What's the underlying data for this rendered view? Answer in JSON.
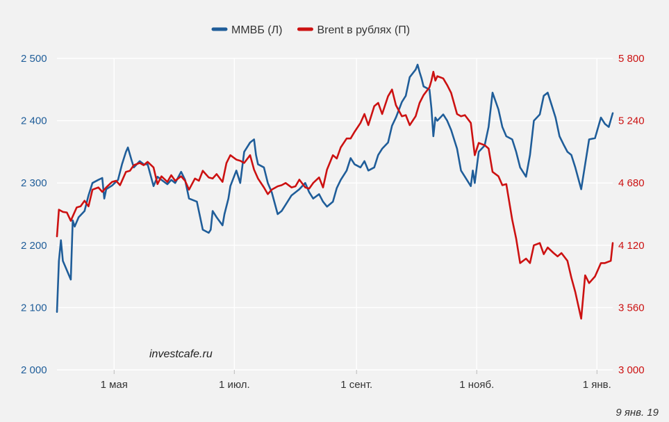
{
  "chart_data": {
    "type": "line",
    "title": "",
    "legend_position": "top-center",
    "grid": true,
    "x_ticks": [
      "1 мая",
      "1 июл.",
      "1 сент.",
      "1 нояб.",
      "1 янв."
    ],
    "y_left": {
      "ticks": [
        "2 000",
        "2 100",
        "2 200",
        "2 300",
        "2 400",
        "2 500"
      ],
      "range": [
        2000,
        2500
      ]
    },
    "y_right": {
      "ticks": [
        "3 000",
        "3 560",
        "4 120",
        "4 680",
        "5 240",
        "5 800"
      ],
      "range": [
        3000,
        5800
      ]
    },
    "x_range": [
      "2018-04-02",
      "2019-01-09"
    ],
    "series": [
      {
        "name": "ММВБ (Л)",
        "color": "#1f5d99",
        "axis": "left",
        "points": [
          [
            "2018-04-02",
            2093
          ],
          [
            "2018-04-03",
            2175
          ],
          [
            "2018-04-04",
            2208
          ],
          [
            "2018-04-05",
            2175
          ],
          [
            "2018-04-09",
            2145
          ],
          [
            "2018-04-10",
            2240
          ],
          [
            "2018-04-11",
            2230
          ],
          [
            "2018-04-13",
            2245
          ],
          [
            "2018-04-16",
            2255
          ],
          [
            "2018-04-18",
            2280
          ],
          [
            "2018-04-20",
            2300
          ],
          [
            "2018-04-23",
            2305
          ],
          [
            "2018-04-25",
            2308
          ],
          [
            "2018-04-26",
            2275
          ],
          [
            "2018-04-27",
            2290
          ],
          [
            "2018-04-30",
            2296
          ],
          [
            "2018-05-03",
            2305
          ],
          [
            "2018-05-05",
            2330
          ],
          [
            "2018-05-07",
            2350
          ],
          [
            "2018-05-08",
            2357
          ],
          [
            "2018-05-10",
            2335
          ],
          [
            "2018-05-11",
            2325
          ],
          [
            "2018-05-14",
            2335
          ],
          [
            "2018-05-16",
            2330
          ],
          [
            "2018-05-18",
            2330
          ],
          [
            "2018-05-21",
            2295
          ],
          [
            "2018-05-23",
            2310
          ],
          [
            "2018-05-25",
            2305
          ],
          [
            "2018-05-28",
            2298
          ],
          [
            "2018-05-30",
            2305
          ],
          [
            "2018-06-01",
            2300
          ],
          [
            "2018-06-04",
            2318
          ],
          [
            "2018-06-06",
            2305
          ],
          [
            "2018-06-08",
            2275
          ],
          [
            "2018-06-12",
            2270
          ],
          [
            "2018-06-15",
            2225
          ],
          [
            "2018-06-18",
            2220
          ],
          [
            "2018-06-19",
            2225
          ],
          [
            "2018-06-20",
            2255
          ],
          [
            "2018-06-22",
            2245
          ],
          [
            "2018-06-25",
            2232
          ],
          [
            "2018-06-26",
            2250
          ],
          [
            "2018-06-28",
            2275
          ],
          [
            "2018-06-29",
            2295
          ],
          [
            "2018-07-02",
            2320
          ],
          [
            "2018-07-04",
            2300
          ],
          [
            "2018-07-06",
            2350
          ],
          [
            "2018-07-09",
            2365
          ],
          [
            "2018-07-11",
            2370
          ],
          [
            "2018-07-12",
            2345
          ],
          [
            "2018-07-13",
            2330
          ],
          [
            "2018-07-16",
            2325
          ],
          [
            "2018-07-18",
            2300
          ],
          [
            "2018-07-20",
            2285
          ],
          [
            "2018-07-23",
            2250
          ],
          [
            "2018-07-25",
            2255
          ],
          [
            "2018-07-27",
            2265
          ],
          [
            "2018-07-30",
            2280
          ],
          [
            "2018-08-01",
            2285
          ],
          [
            "2018-08-03",
            2290
          ],
          [
            "2018-08-06",
            2300
          ],
          [
            "2018-08-08",
            2285
          ],
          [
            "2018-08-10",
            2275
          ],
          [
            "2018-08-13",
            2282
          ],
          [
            "2018-08-15",
            2270
          ],
          [
            "2018-08-17",
            2262
          ],
          [
            "2018-08-20",
            2270
          ],
          [
            "2018-08-22",
            2292
          ],
          [
            "2018-08-24",
            2305
          ],
          [
            "2018-08-27",
            2320
          ],
          [
            "2018-08-29",
            2340
          ],
          [
            "2018-08-31",
            2330
          ],
          [
            "2018-09-03",
            2325
          ],
          [
            "2018-09-05",
            2335
          ],
          [
            "2018-09-07",
            2320
          ],
          [
            "2018-09-10",
            2325
          ],
          [
            "2018-09-12",
            2345
          ],
          [
            "2018-09-14",
            2355
          ],
          [
            "2018-09-17",
            2365
          ],
          [
            "2018-09-19",
            2392
          ],
          [
            "2018-09-21",
            2405
          ],
          [
            "2018-09-24",
            2430
          ],
          [
            "2018-09-26",
            2440
          ],
          [
            "2018-09-28",
            2470
          ],
          [
            "2018-10-01",
            2482
          ],
          [
            "2018-10-02",
            2490
          ],
          [
            "2018-10-03",
            2478
          ],
          [
            "2018-10-04",
            2468
          ],
          [
            "2018-10-05",
            2455
          ],
          [
            "2018-10-08",
            2450
          ],
          [
            "2018-10-09",
            2420
          ],
          [
            "2018-10-10",
            2375
          ],
          [
            "2018-10-11",
            2405
          ],
          [
            "2018-10-12",
            2400
          ],
          [
            "2018-10-15",
            2410
          ],
          [
            "2018-10-17",
            2400
          ],
          [
            "2018-10-19",
            2385
          ],
          [
            "2018-10-22",
            2355
          ],
          [
            "2018-10-24",
            2320
          ],
          [
            "2018-10-26",
            2310
          ],
          [
            "2018-10-29",
            2295
          ],
          [
            "2018-10-30",
            2320
          ],
          [
            "2018-10-31",
            2300
          ],
          [
            "2018-11-02",
            2350
          ],
          [
            "2018-11-05",
            2360
          ],
          [
            "2018-11-07",
            2390
          ],
          [
            "2018-11-09",
            2445
          ],
          [
            "2018-11-12",
            2418
          ],
          [
            "2018-11-14",
            2390
          ],
          [
            "2018-11-16",
            2375
          ],
          [
            "2018-11-19",
            2370
          ],
          [
            "2018-11-21",
            2350
          ],
          [
            "2018-11-23",
            2325
          ],
          [
            "2018-11-26",
            2310
          ],
          [
            "2018-11-28",
            2345
          ],
          [
            "2018-11-30",
            2400
          ],
          [
            "2018-12-03",
            2410
          ],
          [
            "2018-12-05",
            2440
          ],
          [
            "2018-12-07",
            2445
          ],
          [
            "2018-12-09",
            2425
          ],
          [
            "2018-12-11",
            2405
          ],
          [
            "2018-12-13",
            2375
          ],
          [
            "2018-12-15",
            2362
          ],
          [
            "2018-12-17",
            2350
          ],
          [
            "2018-12-19",
            2345
          ],
          [
            "2018-12-21",
            2325
          ],
          [
            "2018-12-24",
            2290
          ],
          [
            "2018-12-26",
            2330
          ],
          [
            "2018-12-28",
            2370
          ],
          [
            "2018-12-31",
            2372
          ],
          [
            "2019-01-03",
            2405
          ],
          [
            "2019-01-05",
            2395
          ],
          [
            "2019-01-07",
            2390
          ],
          [
            "2019-01-09",
            2412
          ]
        ]
      },
      {
        "name": "Brent в рублях (П)",
        "color": "#cc1111",
        "axis": "right",
        "points": [
          [
            "2018-04-02",
            4200
          ],
          [
            "2018-04-03",
            4440
          ],
          [
            "2018-04-05",
            4420
          ],
          [
            "2018-04-07",
            4415
          ],
          [
            "2018-04-09",
            4340
          ],
          [
            "2018-04-10",
            4380
          ],
          [
            "2018-04-12",
            4460
          ],
          [
            "2018-04-14",
            4470
          ],
          [
            "2018-04-16",
            4520
          ],
          [
            "2018-04-18",
            4470
          ],
          [
            "2018-04-20",
            4620
          ],
          [
            "2018-04-23",
            4640
          ],
          [
            "2018-04-25",
            4600
          ],
          [
            "2018-04-27",
            4640
          ],
          [
            "2018-04-30",
            4690
          ],
          [
            "2018-05-02",
            4700
          ],
          [
            "2018-05-04",
            4660
          ],
          [
            "2018-05-07",
            4780
          ],
          [
            "2018-05-09",
            4790
          ],
          [
            "2018-05-11",
            4840
          ],
          [
            "2018-05-14",
            4860
          ],
          [
            "2018-05-16",
            4840
          ],
          [
            "2018-05-18",
            4870
          ],
          [
            "2018-05-21",
            4820
          ],
          [
            "2018-05-23",
            4670
          ],
          [
            "2018-05-25",
            4740
          ],
          [
            "2018-05-28",
            4690
          ],
          [
            "2018-05-30",
            4750
          ],
          [
            "2018-06-01",
            4700
          ],
          [
            "2018-06-04",
            4740
          ],
          [
            "2018-06-06",
            4700
          ],
          [
            "2018-06-08",
            4620
          ],
          [
            "2018-06-11",
            4720
          ],
          [
            "2018-06-13",
            4700
          ],
          [
            "2018-06-15",
            4790
          ],
          [
            "2018-06-18",
            4730
          ],
          [
            "2018-06-20",
            4720
          ],
          [
            "2018-06-22",
            4760
          ],
          [
            "2018-06-25",
            4690
          ],
          [
            "2018-06-27",
            4860
          ],
          [
            "2018-06-29",
            4930
          ],
          [
            "2018-07-02",
            4890
          ],
          [
            "2018-07-04",
            4880
          ],
          [
            "2018-07-06",
            4860
          ],
          [
            "2018-07-09",
            4930
          ],
          [
            "2018-07-11",
            4800
          ],
          [
            "2018-07-13",
            4720
          ],
          [
            "2018-07-16",
            4640
          ],
          [
            "2018-07-18",
            4580
          ],
          [
            "2018-07-20",
            4620
          ],
          [
            "2018-07-23",
            4650
          ],
          [
            "2018-07-25",
            4660
          ],
          [
            "2018-07-27",
            4680
          ],
          [
            "2018-07-30",
            4640
          ],
          [
            "2018-08-01",
            4650
          ],
          [
            "2018-08-03",
            4710
          ],
          [
            "2018-08-06",
            4640
          ],
          [
            "2018-08-08",
            4630
          ],
          [
            "2018-08-10",
            4680
          ],
          [
            "2018-08-13",
            4730
          ],
          [
            "2018-08-15",
            4640
          ],
          [
            "2018-08-17",
            4800
          ],
          [
            "2018-08-20",
            4930
          ],
          [
            "2018-08-22",
            4900
          ],
          [
            "2018-08-24",
            5000
          ],
          [
            "2018-08-27",
            5080
          ],
          [
            "2018-08-29",
            5080
          ],
          [
            "2018-08-31",
            5140
          ],
          [
            "2018-09-03",
            5220
          ],
          [
            "2018-09-05",
            5300
          ],
          [
            "2018-09-07",
            5200
          ],
          [
            "2018-09-10",
            5370
          ],
          [
            "2018-09-12",
            5400
          ],
          [
            "2018-09-14",
            5300
          ],
          [
            "2018-09-17",
            5460
          ],
          [
            "2018-09-19",
            5520
          ],
          [
            "2018-09-21",
            5380
          ],
          [
            "2018-09-24",
            5280
          ],
          [
            "2018-09-26",
            5290
          ],
          [
            "2018-09-28",
            5200
          ],
          [
            "2018-10-01",
            5280
          ],
          [
            "2018-10-03",
            5400
          ],
          [
            "2018-10-05",
            5470
          ],
          [
            "2018-10-08",
            5540
          ],
          [
            "2018-10-09",
            5600
          ],
          [
            "2018-10-10",
            5680
          ],
          [
            "2018-10-11",
            5600
          ],
          [
            "2018-10-12",
            5640
          ],
          [
            "2018-10-15",
            5620
          ],
          [
            "2018-10-17",
            5560
          ],
          [
            "2018-10-19",
            5490
          ],
          [
            "2018-10-22",
            5300
          ],
          [
            "2018-10-24",
            5280
          ],
          [
            "2018-10-26",
            5290
          ],
          [
            "2018-10-29",
            5220
          ],
          [
            "2018-10-31",
            4930
          ],
          [
            "2018-11-02",
            5040
          ],
          [
            "2018-11-05",
            5020
          ],
          [
            "2018-11-07",
            4990
          ],
          [
            "2018-11-09",
            4780
          ],
          [
            "2018-11-12",
            4740
          ],
          [
            "2018-11-14",
            4660
          ],
          [
            "2018-11-16",
            4670
          ],
          [
            "2018-11-19",
            4350
          ],
          [
            "2018-11-21",
            4180
          ],
          [
            "2018-11-23",
            3960
          ],
          [
            "2018-11-26",
            4000
          ],
          [
            "2018-11-28",
            3960
          ],
          [
            "2018-11-30",
            4120
          ],
          [
            "2018-12-03",
            4140
          ],
          [
            "2018-12-05",
            4040
          ],
          [
            "2018-12-07",
            4100
          ],
          [
            "2018-12-10",
            4050
          ],
          [
            "2018-12-12",
            4020
          ],
          [
            "2018-12-14",
            4050
          ],
          [
            "2018-12-17",
            3980
          ],
          [
            "2018-12-19",
            3830
          ],
          [
            "2018-12-21",
            3700
          ],
          [
            "2018-12-24",
            3460
          ],
          [
            "2018-12-26",
            3850
          ],
          [
            "2018-12-28",
            3780
          ],
          [
            "2018-12-31",
            3840
          ],
          [
            "2019-01-03",
            3960
          ],
          [
            "2019-01-05",
            3960
          ],
          [
            "2019-01-08",
            3980
          ],
          [
            "2019-01-09",
            4140
          ]
        ]
      }
    ]
  },
  "watermark": "investcafe.ru",
  "date_stamp": "9 янв. 19"
}
